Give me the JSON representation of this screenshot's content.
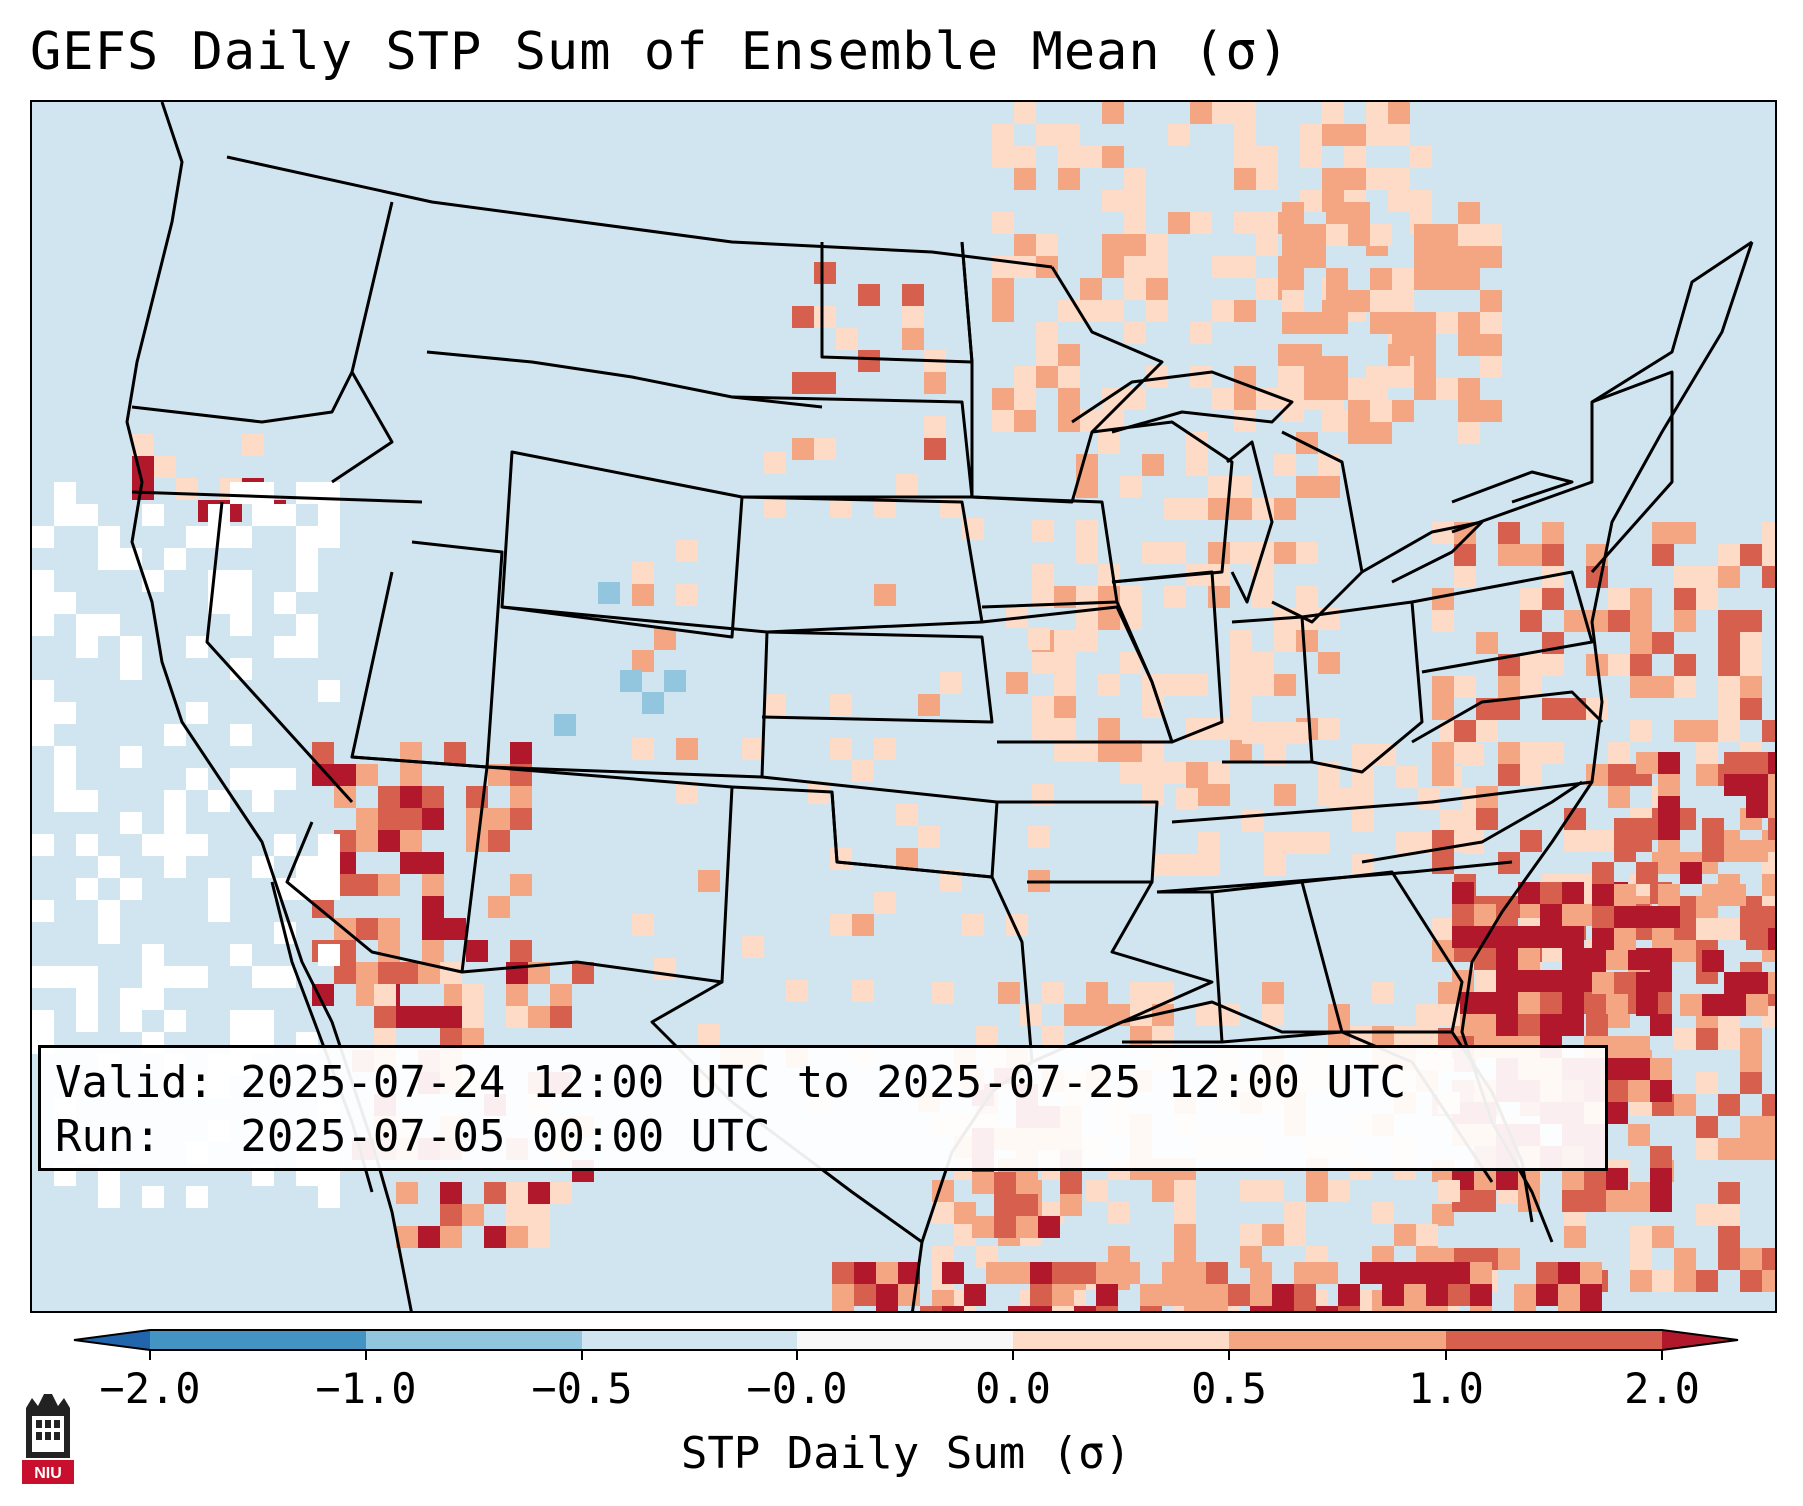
{
  "title": "GEFS Daily STP Sum of Ensemble Mean (σ)",
  "info": {
    "valid_line": "Valid: 2025-07-24 12:00 UTC to 2025-07-25 12:00 UTC",
    "run_line": "Run:   2025-07-05 00:00 UTC"
  },
  "colorbar": {
    "label": "STP Daily Sum (σ)",
    "ticks": [
      "−2.0",
      "−1.0",
      "−0.5",
      "−0.0",
      "0.0",
      "0.5",
      "1.0",
      "2.0"
    ],
    "colors": [
      "#4393c3",
      "#92c5de",
      "#d1e5f0",
      "#f7f7f7",
      "#fddbc7",
      "#f4a582",
      "#d6604d"
    ],
    "under_color": "#2166ac",
    "over_color": "#b2182b"
  },
  "colors": {
    "land_base": "#d1e5f0",
    "light_red": "#fddbc7",
    "mid_red": "#f4a582",
    "red": "#d6604d",
    "dark_red": "#b2182b",
    "light_blue": "#92c5de",
    "white": "#ffffff"
  },
  "logo": {
    "text": "NIU"
  }
}
